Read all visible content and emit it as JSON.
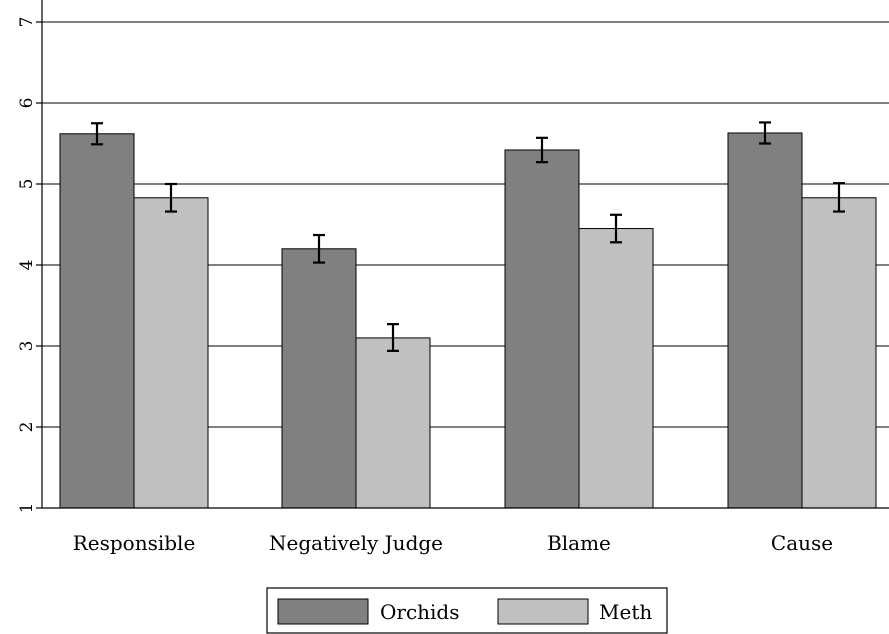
{
  "chart_data": {
    "type": "bar",
    "categories": [
      "Responsible",
      "Negatively Judge",
      "Blame",
      "Cause"
    ],
    "series": [
      {
        "name": "Orchids",
        "values": [
          5.62,
          4.2,
          5.42,
          5.63
        ],
        "error_low": [
          5.49,
          4.03,
          5.27,
          5.5
        ],
        "error_high": [
          5.75,
          4.37,
          5.57,
          5.76
        ],
        "color": "#808080"
      },
      {
        "name": "Meth",
        "values": [
          4.83,
          3.1,
          4.45,
          4.83
        ],
        "error_low": [
          4.66,
          2.94,
          4.28,
          4.66
        ],
        "error_high": [
          5.0,
          3.27,
          4.62,
          5.01
        ],
        "color": "#c0c0c0"
      }
    ],
    "yticks": [
      "1",
      "2",
      "3",
      "4",
      "5",
      "6",
      "7"
    ],
    "ylim": [
      1,
      7
    ],
    "grid": true,
    "legend_position": "bottom"
  }
}
